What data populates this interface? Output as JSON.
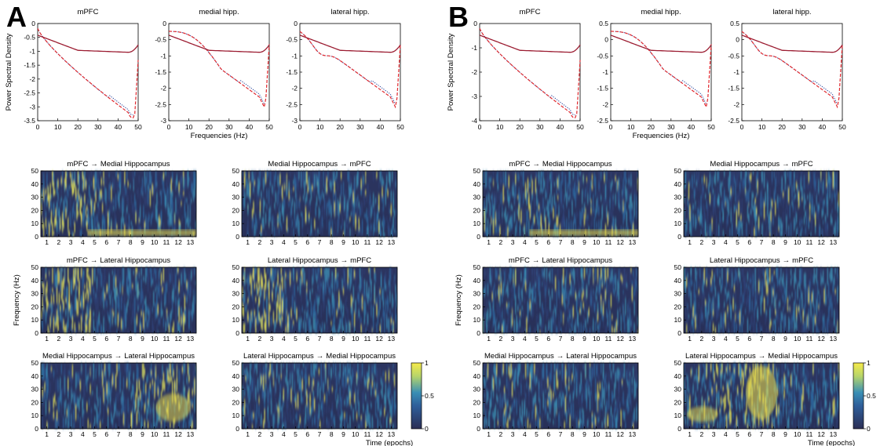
{
  "figure": {
    "panels": [
      {
        "letter": "A",
        "psd": {
          "ylabel": "Power Spectral Density",
          "xlabel": "Frequencies (Hz)",
          "subplots": [
            {
              "title": "mPFC",
              "ylim": [
                -3.5,
                0
              ],
              "yticks": [
                "0",
                "-0.5",
                "-1",
                "-1.5",
                "-2",
                "-2.5",
                "-3",
                "-3.5"
              ],
              "xticks": [
                "0",
                "10",
                "20",
                "30",
                "40",
                "50"
              ]
            },
            {
              "title": "medial hipp.",
              "ylim": [
                -3,
                0
              ],
              "yticks": [
                "0",
                "-0.5",
                "-1",
                "-1.5",
                "-2",
                "-2.5",
                "-3"
              ],
              "xticks": [
                "0",
                "10",
                "20",
                "30",
                "40",
                "50"
              ]
            },
            {
              "title": "lateral hipp.",
              "ylim": [
                -3,
                0
              ],
              "yticks": [
                "0",
                "-0.5",
                "-1",
                "-1.5",
                "-2",
                "-2.5",
                "-3"
              ],
              "xticks": [
                "0",
                "10",
                "20",
                "30",
                "40",
                "50"
              ]
            }
          ]
        },
        "coherence": {
          "ylabel": "Frequency (Hz)",
          "xlabel": "Time (epochs)",
          "yticks": [
            "0",
            "10",
            "20",
            "30",
            "40",
            "50"
          ],
          "xticks": [
            "1",
            "2",
            "3",
            "4",
            "5",
            "6",
            "7",
            "8",
            "9",
            "10",
            "11",
            "12",
            "13"
          ],
          "subplots": [
            {
              "from": "mPFC",
              "to": "Medial Hippocampus"
            },
            {
              "from": "Medial Hippocampus",
              "to": "mPFC"
            },
            {
              "from": "mPFC",
              "to": "Lateral Hippocampus"
            },
            {
              "from": "Lateral Hippocampus",
              "to": "mPFC"
            },
            {
              "from": "Medial Hippocampus",
              "to": "Lateral Hippocampus"
            },
            {
              "from": "Lateral Hippocampus",
              "to": "Medial Hippocampus"
            }
          ],
          "colorbar_ticks": [
            "1",
            "0.5",
            "0"
          ]
        }
      },
      {
        "letter": "B",
        "psd": {
          "ylabel": "Power Spectral Density",
          "xlabel": "Frequencies (Hz)",
          "subplots": [
            {
              "title": "mPFC",
              "ylim": [
                -4,
                0
              ],
              "yticks": [
                "0",
                "-1",
                "-2",
                "-3",
                "-4"
              ],
              "xticks": [
                "0",
                "10",
                "20",
                "30",
                "40",
                "50"
              ]
            },
            {
              "title": "medial hipp.",
              "ylim": [
                -2.5,
                0.5
              ],
              "yticks": [
                "0.5",
                "0",
                "-0.5",
                "-1",
                "-1.5",
                "-2",
                "-2.5"
              ],
              "xticks": [
                "0",
                "10",
                "20",
                "30",
                "40",
                "50"
              ]
            },
            {
              "title": "lateral hipp.",
              "ylim": [
                -2.5,
                0.5
              ],
              "yticks": [
                "0.5",
                "0",
                "-0.5",
                "-1",
                "-1.5",
                "-2",
                "-2.5"
              ],
              "xticks": [
                "0",
                "10",
                "20",
                "30",
                "40",
                "50"
              ]
            }
          ]
        },
        "coherence": {
          "ylabel": "Frequency (Hz)",
          "xlabel": "Time (epochs)",
          "yticks": [
            "0",
            "10",
            "20",
            "30",
            "40",
            "50"
          ],
          "xticks": [
            "1",
            "2",
            "3",
            "4",
            "5",
            "6",
            "7",
            "8",
            "9",
            "10",
            "11",
            "12",
            "13"
          ],
          "subplots": [
            {
              "from": "mPFC",
              "to": "Medial Hippocampus"
            },
            {
              "from": "Medial Hippocampus",
              "to": "mPFC"
            },
            {
              "from": "mPFC",
              "to": "Lateral Hippocampus"
            },
            {
              "from": "Lateral Hippocampus",
              "to": "mPFC"
            },
            {
              "from": "Medial Hippocampus",
              "to": "Lateral Hippocampus"
            },
            {
              "from": "Lateral Hippocampus",
              "to": "Medial Hippocampus"
            }
          ],
          "colorbar_ticks": [
            "1",
            "0.5",
            "0"
          ]
        }
      }
    ],
    "colors": {
      "solid_line": "#9b1b30",
      "dashed_line": "#e0282e",
      "dotted_line": "#1f3d99",
      "map_low": "#2b2e55",
      "map_mid": "#2f6fa8",
      "map_high": "#f6ea4a"
    }
  }
}
